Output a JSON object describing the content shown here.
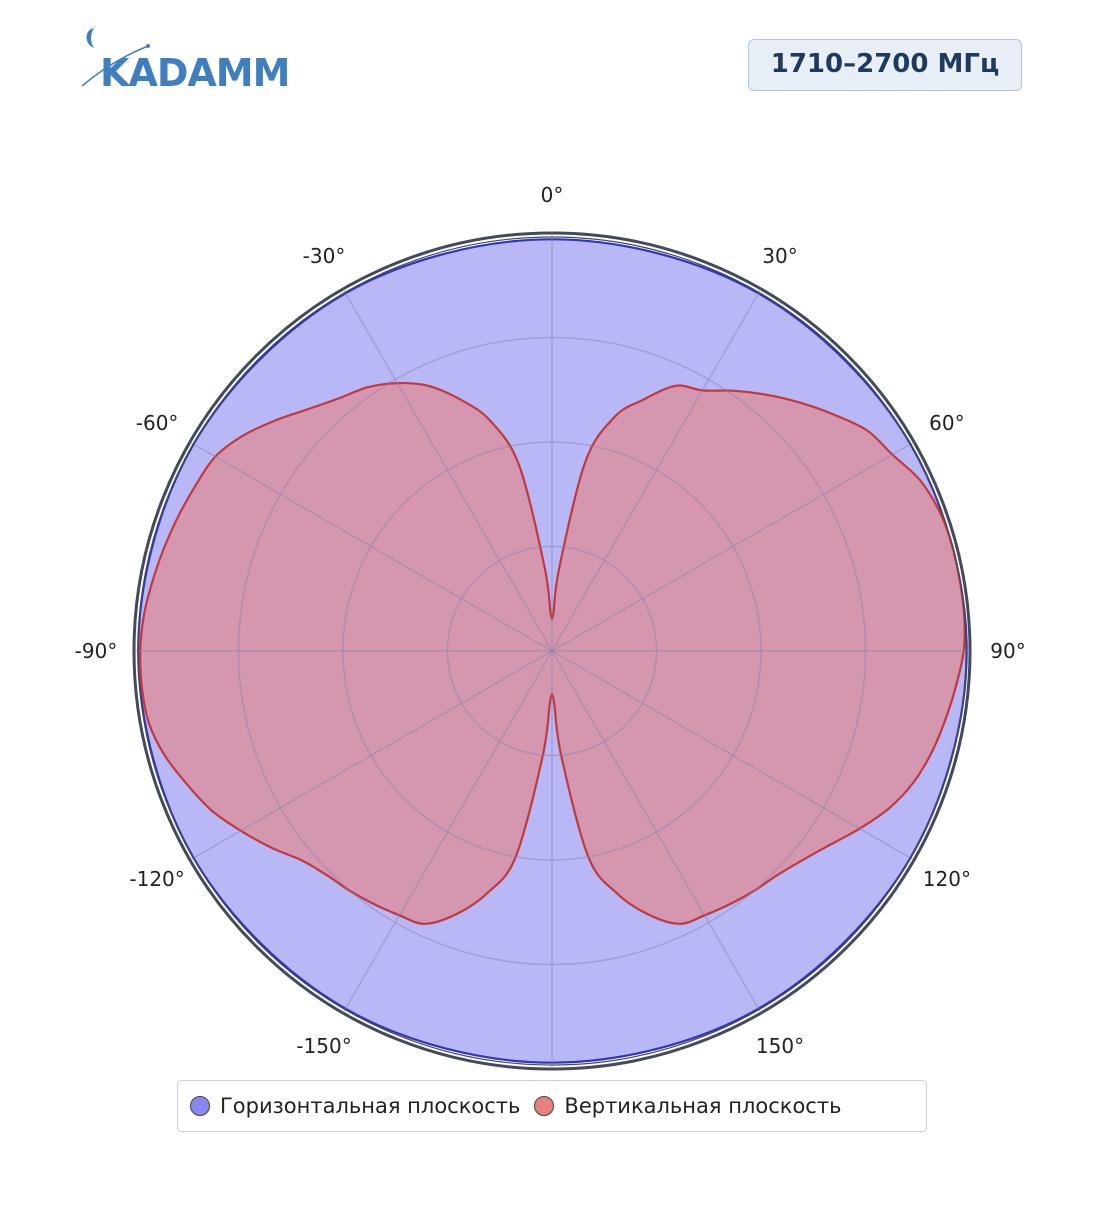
{
  "header": {
    "logo_text": "KADAMM",
    "frequency_badge": "1710–2700 МГц"
  },
  "colors": {
    "horizontal_fill": "#8888f0",
    "horizontal_line": "#3333bb",
    "vertical_fill": "#e88080",
    "vertical_line": "#c0393c",
    "logo": "#3f7fc0"
  },
  "chart_data": {
    "type": "polar-area",
    "radial_range": [
      0,
      1
    ],
    "radial_grid": [
      0.25,
      0.5,
      0.75,
      1.0
    ],
    "grid": true,
    "angular_direction": "clockwise",
    "zero_angle_position": "top",
    "angular_ticks": [
      "0°",
      "30°",
      "60°",
      "90°",
      "120°",
      "150°",
      "-150°",
      "-120°",
      "-90°",
      "-60°",
      "-30°"
    ],
    "legend_position": "bottom",
    "series": [
      {
        "name": "Горизонтальная плоскость",
        "angles_deg": [
          0,
          30,
          60,
          90,
          120,
          150,
          180,
          210,
          240,
          270,
          300,
          330
        ],
        "values": [
          0.985,
          0.988,
          0.99,
          0.992,
          0.99,
          0.988,
          0.985,
          0.988,
          0.99,
          0.99,
          0.99,
          0.988
        ]
      },
      {
        "name": "Вертикальная плоскость",
        "angles_deg": [
          2,
          5,
          10,
          15,
          20,
          25,
          30,
          35,
          40,
          45,
          50,
          55,
          60,
          65,
          70,
          75,
          80,
          85,
          90,
          95,
          100,
          105,
          110,
          115,
          120,
          125,
          130,
          135,
          140,
          145,
          150,
          155,
          160,
          165,
          170,
          175,
          178,
          182,
          185,
          190,
          195,
          200,
          205,
          210,
          215,
          220,
          225,
          230,
          235,
          240,
          245,
          250,
          255,
          260,
          265,
          270,
          275,
          280,
          285,
          290,
          295,
          300,
          305,
          310,
          315,
          320,
          325,
          330,
          335,
          340,
          345,
          350,
          355,
          358
        ],
        "values": [
          0.09,
          0.2,
          0.46,
          0.58,
          0.64,
          0.7,
          0.72,
          0.76,
          0.8,
          0.84,
          0.88,
          0.92,
          0.94,
          0.97,
          0.985,
          0.99,
          0.99,
          0.99,
          0.985,
          0.97,
          0.955,
          0.94,
          0.92,
          0.89,
          0.85,
          0.81,
          0.78,
          0.76,
          0.75,
          0.74,
          0.73,
          0.72,
          0.67,
          0.6,
          0.5,
          0.25,
          0.12,
          0.12,
          0.25,
          0.5,
          0.6,
          0.67,
          0.72,
          0.73,
          0.74,
          0.75,
          0.76,
          0.78,
          0.82,
          0.86,
          0.9,
          0.93,
          0.96,
          0.98,
          0.985,
          0.985,
          0.98,
          0.97,
          0.96,
          0.95,
          0.94,
          0.93,
          0.9,
          0.86,
          0.82,
          0.79,
          0.77,
          0.74,
          0.7,
          0.64,
          0.57,
          0.45,
          0.2,
          0.09
        ]
      }
    ]
  }
}
